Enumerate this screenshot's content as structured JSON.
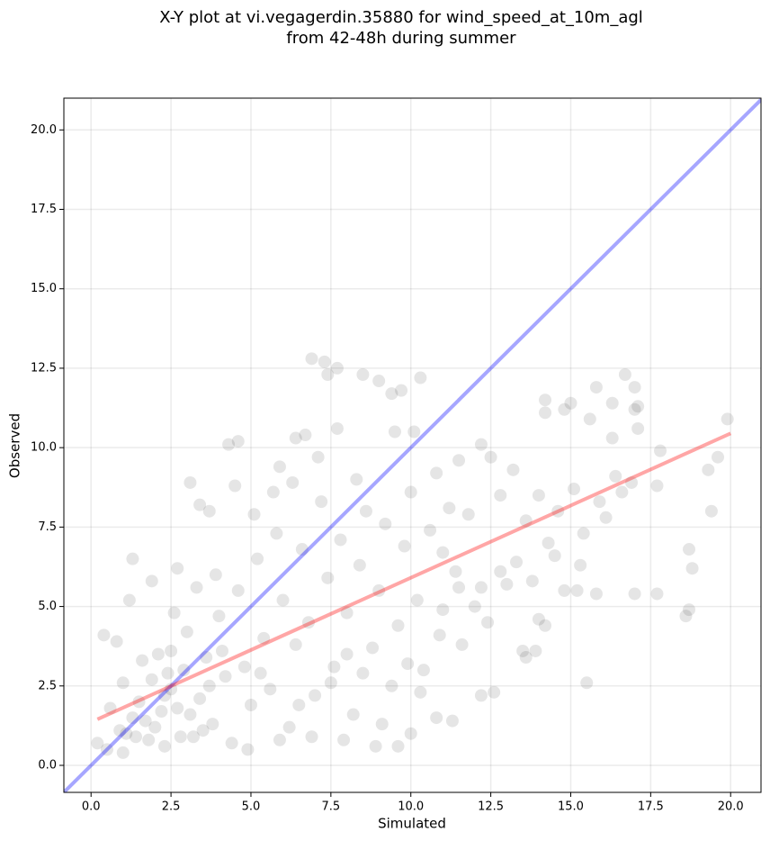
{
  "chart_data": {
    "type": "scatter",
    "title": [
      "X-Y plot at vi.vegagerdin.35880 for wind_speed_at_10m_agl",
      "from 42-48h during summer"
    ],
    "x_label": "Simulated",
    "y_label": "Observed",
    "xlim": [
      -0.85,
      20.95
    ],
    "ylim": [
      -0.85,
      21.0
    ],
    "xticks": [
      {
        "value": 0,
        "label": "0.0"
      },
      2.5,
      {
        "value": 5,
        "label": "5.0"
      },
      7.5,
      {
        "value": 10,
        "label": "10.0"
      },
      12.5,
      {
        "value": 15,
        "label": "15.0"
      },
      17.5,
      {
        "value": 20,
        "label": "20.0"
      }
    ],
    "yticks": [
      {
        "value": 0,
        "label": "0.0"
      },
      2.5,
      {
        "value": 5,
        "label": "5.0"
      },
      7.5,
      {
        "value": 10,
        "label": "10.0"
      },
      12.5,
      {
        "value": 15,
        "label": "15.0"
      },
      17.5,
      {
        "value": 20,
        "label": "20.0"
      }
    ],
    "grid": true,
    "series": [
      {
        "type": "scatter",
        "color": "#000000",
        "opacity": 0.1,
        "x": [
          6.9,
          7.3,
          7.7,
          8.5,
          9.0,
          9.4,
          9.7,
          10.3,
          7.4,
          14.2,
          14.8,
          15.0,
          15.8,
          16.7,
          17.0,
          16.3,
          17.1,
          17.0,
          17.1,
          19.9,
          16.3,
          15.6,
          14.2,
          17.8,
          19.6,
          19.3,
          19.4,
          17.7,
          18.7,
          18.8,
          18.7,
          18.6,
          17.7,
          17.0,
          15.5,
          15.8,
          15.2,
          14.8,
          14.2,
          14.0,
          13.5,
          13.6,
          13.9,
          12.6,
          12.2,
          12.4,
          12.2,
          13.0,
          12.8,
          11.3,
          10.8,
          10.3,
          9.6,
          8.9,
          10.0,
          5.9,
          4.3,
          4.6,
          3.1,
          3.4,
          3.7,
          6.4,
          6.7,
          7.7,
          9.5,
          10.1,
          7.1,
          8.3,
          11.5,
          12.2,
          12.5,
          13.2,
          14.0,
          15.1,
          15.9,
          16.4,
          16.9,
          14.3,
          15.3,
          13.3,
          11.0,
          11.5,
          10.9,
          9.9,
          8.0,
          1.3,
          2.7,
          1.9,
          0.4,
          0.8,
          1.2,
          0.2,
          0.5,
          0.9,
          1.0,
          1.3,
          1.5,
          1.8,
          2.0,
          2.1,
          2.3,
          2.5,
          2.7,
          2.9,
          3.0,
          3.2,
          3.4,
          3.6,
          3.8,
          4.0,
          4.2,
          4.4,
          4.6,
          4.8,
          5.0,
          5.2,
          5.4,
          5.6,
          5.8,
          6.0,
          6.2,
          6.4,
          6.6,
          6.8,
          7.0,
          7.2,
          7.4,
          7.6,
          7.8,
          8.0,
          8.2,
          8.4,
          8.6,
          8.8,
          9.0,
          9.2,
          9.4,
          9.6,
          9.8,
          10.0,
          10.2,
          10.4,
          10.6,
          10.8,
          11.0,
          11.2,
          11.4,
          11.6,
          11.8,
          12.0,
          1.0,
          1.6,
          2.2,
          2.6,
          3.3,
          3.9,
          4.5,
          5.1,
          5.7,
          6.3,
          4.9,
          5.9,
          6.9,
          7.9,
          0.6,
          1.4,
          2.4,
          3.5,
          4.1,
          5.3,
          6.5,
          7.5,
          8.5,
          9.1,
          12.8,
          13.6,
          14.6,
          15.4,
          16.1,
          16.6,
          13.8,
          14.5,
          1.1,
          1.7,
          2.3,
          2.8,
          3.1,
          1.9,
          2.5,
          3.7
        ],
        "values": [
          12.8,
          12.7,
          12.5,
          12.3,
          12.1,
          11.7,
          11.8,
          12.2,
          12.3,
          11.5,
          11.2,
          11.4,
          11.9,
          12.3,
          11.9,
          11.4,
          11.3,
          11.2,
          10.6,
          10.9,
          10.3,
          10.9,
          11.1,
          9.9,
          9.7,
          9.3,
          8.0,
          8.8,
          6.8,
          6.2,
          4.9,
          4.7,
          5.4,
          5.4,
          2.6,
          5.4,
          5.5,
          5.5,
          4.4,
          4.6,
          3.6,
          3.4,
          3.6,
          2.3,
          2.2,
          4.5,
          5.6,
          5.7,
          6.1,
          1.4,
          1.5,
          2.3,
          0.6,
          0.6,
          1.0,
          9.4,
          10.1,
          10.2,
          8.9,
          8.2,
          8.0,
          10.3,
          10.4,
          10.6,
          10.5,
          10.5,
          9.7,
          9.0,
          9.6,
          10.1,
          9.7,
          9.3,
          8.5,
          8.7,
          8.3,
          9.1,
          8.9,
          7.0,
          6.3,
          6.4,
          6.7,
          5.6,
          4.1,
          3.2,
          3.5,
          6.5,
          6.2,
          5.8,
          4.1,
          3.9,
          5.2,
          0.7,
          0.5,
          1.1,
          0.4,
          1.5,
          2.0,
          0.8,
          1.2,
          3.5,
          0.6,
          2.4,
          1.8,
          3.0,
          4.2,
          0.9,
          2.1,
          3.4,
          1.3,
          4.7,
          2.8,
          0.7,
          5.5,
          3.1,
          1.9,
          6.5,
          4.0,
          2.4,
          7.3,
          5.2,
          1.2,
          3.8,
          6.8,
          4.5,
          2.2,
          8.3,
          5.9,
          3.1,
          7.1,
          4.8,
          1.6,
          6.3,
          8.0,
          3.7,
          5.5,
          7.6,
          2.5,
          4.4,
          6.9,
          8.6,
          5.2,
          3.0,
          7.4,
          9.2,
          4.9,
          8.1,
          6.1,
          3.8,
          7.9,
          5.0,
          2.6,
          3.3,
          1.7,
          4.8,
          5.6,
          6.0,
          8.8,
          7.9,
          8.6,
          8.9,
          0.5,
          0.8,
          0.9,
          0.8,
          1.8,
          0.9,
          2.9,
          1.1,
          3.6,
          2.9,
          1.9,
          2.6,
          2.9,
          1.3,
          8.5,
          7.7,
          8.0,
          7.3,
          7.8,
          8.6,
          5.8,
          6.6,
          1.0,
          1.4,
          2.2,
          0.9,
          1.6,
          2.7,
          3.6,
          2.5
        ]
      },
      {
        "type": "line",
        "color": "#0000ff",
        "opacity": 0.35,
        "x": [
          -0.85,
          20.95
        ],
        "values": [
          -0.85,
          20.95
        ]
      },
      {
        "type": "line",
        "color": "#ff0000",
        "opacity": 0.35,
        "x": [
          0.2,
          20.0
        ],
        "values": [
          1.45,
          10.45
        ]
      }
    ]
  }
}
